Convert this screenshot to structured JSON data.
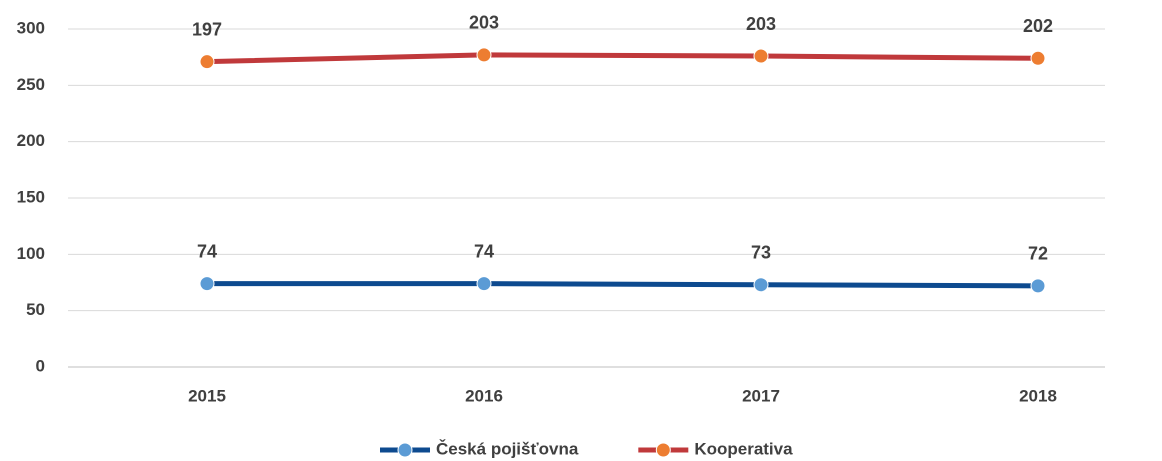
{
  "chart_data": {
    "type": "line",
    "stacked": true,
    "categories": [
      "2015",
      "2016",
      "2017",
      "2018"
    ],
    "series": [
      {
        "name": "Česká pojišťovna",
        "color": "#0d4a8f",
        "marker_color": "#5b9bd5",
        "values": [
          74,
          74,
          73,
          72
        ]
      },
      {
        "name": "Kooperativa",
        "color": "#c0393b",
        "marker_color": "#ed7d31",
        "values": [
          197,
          203,
          203,
          202
        ]
      }
    ],
    "ylim": [
      0,
      300
    ],
    "yticks": [
      0,
      50,
      100,
      150,
      200,
      250,
      300
    ],
    "grid": true,
    "legend": "bottom"
  }
}
